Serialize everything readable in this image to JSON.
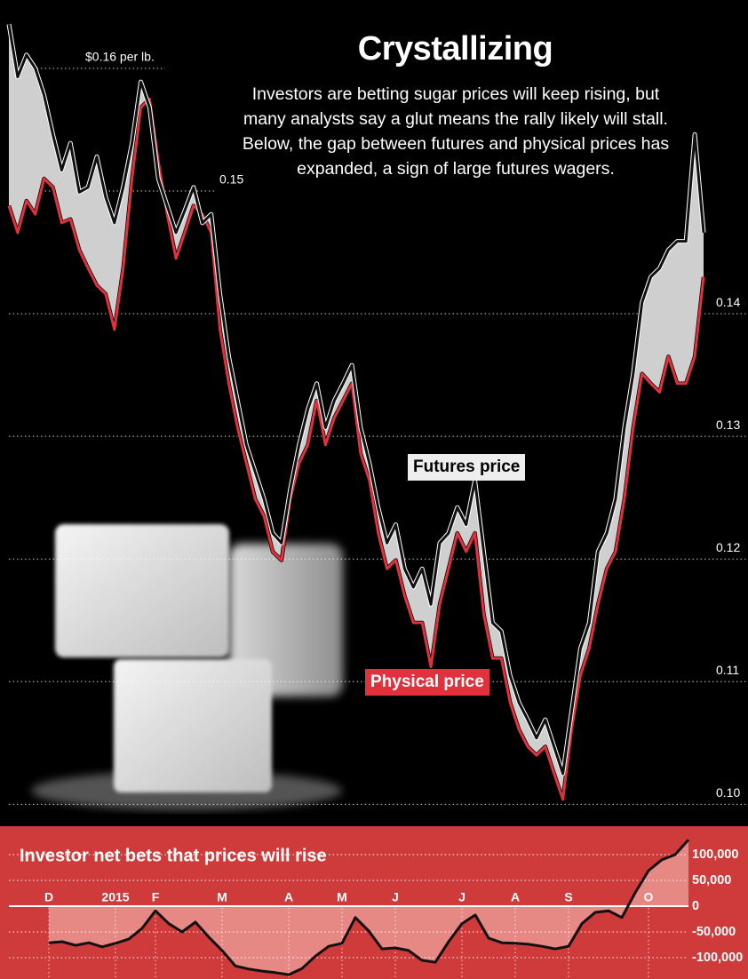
{
  "chart_data": [
    {
      "type": "line",
      "title": "Crystallizing",
      "subtitle": "Investors are betting sugar prices will keep rising, but many analysts say a glut means the rally likely will stall. Below, the gap between futures and physical prices has expanded, a sign of large futures wagers.",
      "categories": [
        null,
        null,
        null,
        null,
        null,
        null,
        null,
        null,
        null,
        null,
        null,
        null,
        null,
        null,
        null,
        null,
        null,
        null,
        null,
        null,
        null,
        null,
        null,
        null,
        null,
        null,
        null,
        null,
        null,
        null,
        null,
        null,
        null,
        null,
        null,
        null,
        null,
        null,
        null,
        null,
        null,
        null,
        null,
        null,
        null,
        null,
        null,
        null,
        null,
        null,
        null,
        null,
        null,
        null,
        null,
        null,
        null,
        null,
        null,
        null,
        null,
        null,
        null,
        null,
        null,
        null,
        null,
        null,
        null,
        null,
        null,
        null,
        null,
        null,
        null,
        null,
        null,
        null,
        null,
        null
      ],
      "series": [
        {
          "name": "Futures price",
          "color": "#111111",
          "values": [
            0.1636,
            0.1593,
            0.1611,
            0.16,
            0.1578,
            0.1546,
            0.1517,
            0.1539,
            0.1499,
            0.1503,
            0.1528,
            0.1495,
            0.1474,
            0.1503,
            0.1539,
            0.1589,
            0.1568,
            0.151,
            0.1488,
            0.1466,
            0.1484,
            0.1503,
            0.1474,
            0.1481,
            0.1416,
            0.1365,
            0.1329,
            0.1293,
            0.1271,
            0.1249,
            0.1221,
            0.1213,
            0.1257,
            0.1293,
            0.1322,
            0.1343,
            0.1307,
            0.1329,
            0.1343,
            0.1358,
            0.1307,
            0.1278,
            0.1242,
            0.1213,
            0.1228,
            0.1192,
            0.1177,
            0.1192,
            0.1163,
            0.1213,
            0.1221,
            0.1242,
            0.1228,
            0.1264,
            0.1206,
            0.1148,
            0.1141,
            0.1105,
            0.1083,
            0.1069,
            0.1054,
            0.1069,
            0.1047,
            0.1025,
            0.1076,
            0.1127,
            0.1148,
            0.1206,
            0.1221,
            0.1249,
            0.1307,
            0.1351,
            0.1409,
            0.143,
            0.1437,
            0.1452,
            0.1459,
            0.1459,
            0.1546,
            0.1466
          ]
        },
        {
          "name": "Physical price",
          "color": "#e0323c",
          "values": [
            0.1488,
            0.1466,
            0.1492,
            0.1481,
            0.151,
            0.1503,
            0.1474,
            0.1477,
            0.1452,
            0.1437,
            0.1423,
            0.1416,
            0.1387,
            0.1437,
            0.151,
            0.1568,
            0.1575,
            0.1524,
            0.1481,
            0.1445,
            0.1466,
            0.1488,
            0.1481,
            0.1466,
            0.1387,
            0.1343,
            0.1307,
            0.1278,
            0.1249,
            0.1235,
            0.1206,
            0.1199,
            0.1249,
            0.1278,
            0.1293,
            0.1329,
            0.1293,
            0.1315,
            0.1329,
            0.1343,
            0.1286,
            0.1264,
            0.1221,
            0.1192,
            0.1199,
            0.117,
            0.1148,
            0.1148,
            0.1112,
            0.1163,
            0.1192,
            0.1221,
            0.1206,
            0.1221,
            0.1155,
            0.1119,
            0.1119,
            0.1083,
            0.1061,
            0.1047,
            0.104,
            0.1047,
            0.1025,
            0.1004,
            0.1061,
            0.1105,
            0.1127,
            0.1163,
            0.1192,
            0.1206,
            0.1249,
            0.1307,
            0.1351,
            0.1343,
            0.1336,
            0.1365,
            0.1343,
            0.1343,
            0.1365,
            0.143
          ]
        }
      ],
      "ylim": [
        0.098,
        0.1655
      ],
      "yticks": [
        {
          "value": 0.1,
          "label": "0.10"
        },
        0.11,
        0.12,
        0.13,
        0.14,
        0.15,
        {
          "value": 0.16,
          "label": "$0.16 per lb."
        }
      ],
      "grid": true
    },
    {
      "type": "area",
      "title": "Investor net bets that prices will rise",
      "categories": [
        "D",
        null,
        null,
        null,
        null,
        "2015",
        null,
        null,
        "F",
        null,
        null,
        null,
        null,
        "M",
        null,
        null,
        null,
        null,
        "A",
        null,
        null,
        null,
        "M",
        null,
        null,
        null,
        "J",
        null,
        null,
        null,
        null,
        "J",
        null,
        null,
        null,
        "A",
        null,
        null,
        null,
        "S",
        null,
        null,
        null,
        null,
        null,
        "O",
        null,
        null,
        null
      ],
      "values": [
        -71000,
        -69000,
        -76000,
        -71000,
        -79000,
        -72000,
        -64000,
        -43000,
        -9000,
        -34000,
        -50000,
        -31000,
        -60000,
        -86000,
        -116000,
        -122000,
        -126000,
        -129000,
        -133000,
        -121000,
        -97000,
        -78000,
        -72000,
        -22000,
        -48000,
        -83000,
        -81000,
        -86000,
        -105000,
        -109000,
        -69000,
        -34000,
        -17000,
        -62000,
        -71000,
        -72000,
        -74000,
        -78000,
        -83000,
        -78000,
        -34000,
        -12000,
        -9000,
        -22000,
        26000,
        69000,
        90000,
        100000,
        129000
      ],
      "color": "#111111",
      "fill": "#eea39c",
      "ylim": [
        -135000,
        130000
      ],
      "yticks": [
        {
          "value": -100000,
          "label": "-100,000"
        },
        {
          "value": -50000,
          "label": "-50,000"
        },
        0,
        {
          "value": 50000,
          "label": "50,000"
        },
        {
          "value": 100000,
          "label": "100,000"
        }
      ],
      "grid": true
    }
  ]
}
